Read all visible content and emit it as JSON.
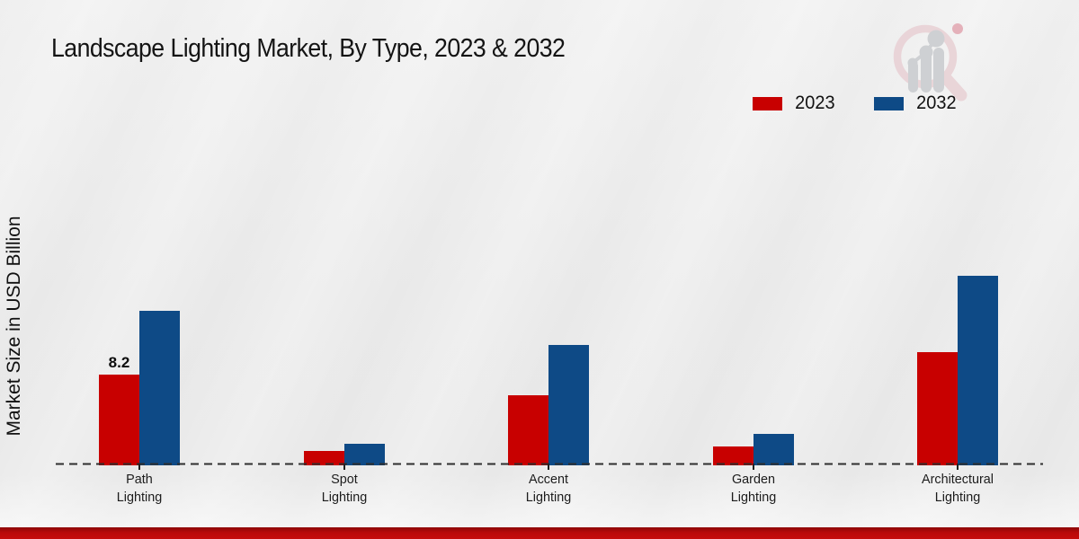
{
  "title": "Landscape Lighting Market, By Type, 2023 & 2032",
  "ylabel": "Market Size in USD Billion",
  "legend": {
    "items": [
      {
        "label": "2023",
        "color": "#c80000"
      },
      {
        "label": "2032",
        "color": "#0e4a86"
      }
    ]
  },
  "colors": {
    "series_2023": "#c80000",
    "series_2032": "#0e4a86",
    "baseline": "#2e2e2e",
    "bottom_strip": "#c60b0b",
    "background": "#ebebeb"
  },
  "chart_data": {
    "type": "bar",
    "title": "Landscape Lighting Market, By Type, 2023 & 2032",
    "xlabel": "",
    "ylabel": "Market Size in USD Billion",
    "categories": [
      "Path Lighting",
      "Spot Lighting",
      "Accent Lighting",
      "Garden Lighting",
      "Architectural Lighting"
    ],
    "series": [
      {
        "name": "2023",
        "color": "#c80000",
        "values": [
          8.2,
          1.2,
          6.3,
          1.6,
          10.3
        ]
      },
      {
        "name": "2032",
        "color": "#0e4a86",
        "values": [
          14.1,
          1.8,
          10.9,
          2.7,
          17.3
        ]
      }
    ],
    "annotations": [
      {
        "series": "2023",
        "category_index": 0,
        "text": "8.2"
      }
    ],
    "ylim": [
      0,
      20
    ],
    "grid": false,
    "legend_position": "top-right",
    "baseline_style": "dashed",
    "y_axis_ticks_visible": false
  }
}
